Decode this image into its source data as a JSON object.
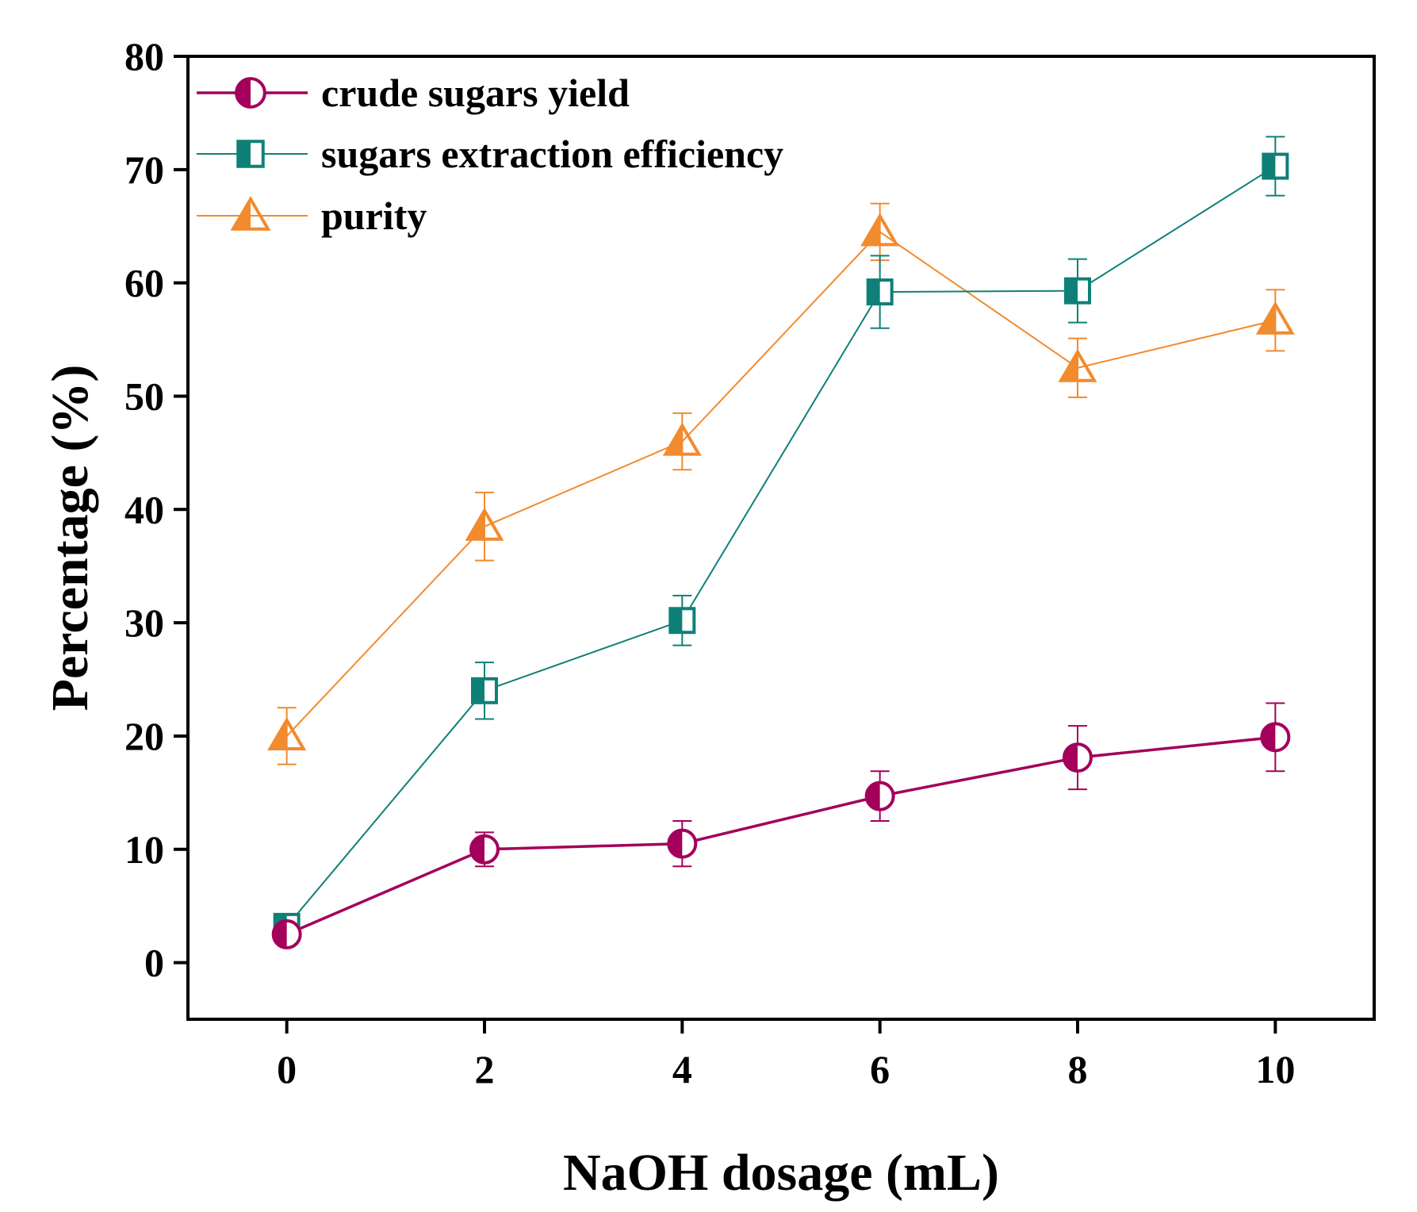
{
  "chart_data": {
    "type": "line",
    "xlabel": "NaOH dosage (mL)",
    "ylabel": "Percentage (%)",
    "xlim": [
      -1,
      11
    ],
    "ylim": [
      -5,
      80
    ],
    "xticks": [
      0,
      2,
      4,
      6,
      8,
      10
    ],
    "yticks": [
      0,
      10,
      20,
      30,
      40,
      50,
      60,
      70,
      80
    ],
    "x": [
      0,
      2,
      4,
      6,
      8,
      10
    ],
    "legend_position": "top-left",
    "grid": false,
    "series": [
      {
        "name": "crude sugars yield",
        "color": "#a3005b",
        "marker": "circle-half-filled",
        "values": [
          2.5,
          10.0,
          10.5,
          14.7,
          18.1,
          19.9
        ],
        "errors": [
          0.5,
          1.5,
          2.0,
          2.2,
          2.8,
          3.0
        ]
      },
      {
        "name": "sugars extraction efficiency",
        "color": "#0f8078",
        "marker": "square-half-filled",
        "values": [
          3.2,
          24.0,
          30.2,
          59.2,
          59.3,
          70.3
        ],
        "errors": [
          0.5,
          2.5,
          2.2,
          3.2,
          2.8,
          2.6
        ]
      },
      {
        "name": "purity",
        "color": "#f28a2e",
        "marker": "triangle-half-filled",
        "values": [
          20.0,
          38.5,
          46.0,
          64.5,
          52.5,
          56.7
        ],
        "errors": [
          2.5,
          3.0,
          2.5,
          2.5,
          2.6,
          2.7
        ]
      }
    ]
  }
}
